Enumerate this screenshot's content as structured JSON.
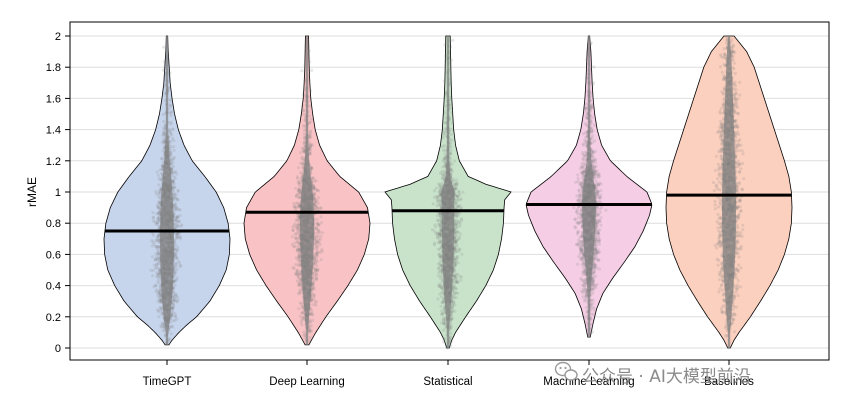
{
  "chart_data": {
    "type": "violin",
    "ylabel": "rMAE",
    "ylim": [
      0,
      2
    ],
    "yticks": [
      0,
      0.2,
      0.4,
      0.6,
      0.8,
      1,
      1.2,
      1.4,
      1.6,
      1.8,
      2
    ],
    "ytick_labels": [
      "0",
      "0.2",
      "0.4",
      "0.6",
      "0.8",
      "1",
      "1.2",
      "1.4",
      "1.6",
      "1.8",
      "2"
    ],
    "grid": "horizontal",
    "categories": [
      "TimeGPT",
      "Deep Learning",
      "Statistical",
      "Machine Learning",
      "Baselines"
    ],
    "medians": [
      0.75,
      0.87,
      0.88,
      0.92,
      0.98
    ],
    "colors": [
      "#c7d5ec",
      "#f9c3c6",
      "#c9e3cb",
      "#f5cde4",
      "#fcd0bf"
    ],
    "point_color": "#808080",
    "series": [
      {
        "category": "TimeGPT",
        "min": 0.02,
        "max": 2.0,
        "density": [
          [
            0.02,
            0.03
          ],
          [
            0.05,
            0.08
          ],
          [
            0.1,
            0.19
          ],
          [
            0.15,
            0.32
          ],
          [
            0.2,
            0.47
          ],
          [
            0.3,
            0.68
          ],
          [
            0.4,
            0.83
          ],
          [
            0.5,
            0.94
          ],
          [
            0.6,
            0.99
          ],
          [
            0.7,
            1.0
          ],
          [
            0.8,
            0.97
          ],
          [
            0.9,
            0.9
          ],
          [
            1.0,
            0.78
          ],
          [
            1.1,
            0.6
          ],
          [
            1.2,
            0.4
          ],
          [
            1.3,
            0.27
          ],
          [
            1.4,
            0.18
          ],
          [
            1.5,
            0.12
          ],
          [
            1.6,
            0.08
          ],
          [
            1.7,
            0.05
          ],
          [
            1.8,
            0.035
          ],
          [
            1.9,
            0.02
          ],
          [
            2.0,
            0.01
          ]
        ]
      },
      {
        "category": "Deep Learning",
        "min": 0.02,
        "max": 2.0,
        "density": [
          [
            0.02,
            0.03
          ],
          [
            0.05,
            0.07
          ],
          [
            0.1,
            0.14
          ],
          [
            0.2,
            0.3
          ],
          [
            0.3,
            0.48
          ],
          [
            0.4,
            0.65
          ],
          [
            0.5,
            0.8
          ],
          [
            0.6,
            0.91
          ],
          [
            0.7,
            0.98
          ],
          [
            0.8,
            1.0
          ],
          [
            0.9,
            0.96
          ],
          [
            1.0,
            0.82
          ],
          [
            1.1,
            0.52
          ],
          [
            1.2,
            0.32
          ],
          [
            1.3,
            0.2
          ],
          [
            1.4,
            0.13
          ],
          [
            1.5,
            0.09
          ],
          [
            1.6,
            0.06
          ],
          [
            1.7,
            0.045
          ],
          [
            1.8,
            0.035
          ],
          [
            1.9,
            0.03
          ],
          [
            2.0,
            0.025
          ]
        ]
      },
      {
        "category": "Statistical",
        "min": 0.0,
        "max": 2.0,
        "density": [
          [
            0.0,
            0.02
          ],
          [
            0.05,
            0.06
          ],
          [
            0.1,
            0.12
          ],
          [
            0.2,
            0.28
          ],
          [
            0.3,
            0.45
          ],
          [
            0.4,
            0.6
          ],
          [
            0.5,
            0.72
          ],
          [
            0.6,
            0.8
          ],
          [
            0.7,
            0.85
          ],
          [
            0.8,
            0.88
          ],
          [
            0.9,
            0.89
          ],
          [
            0.95,
            0.9
          ],
          [
            1.0,
            1.0
          ],
          [
            1.05,
            0.6
          ],
          [
            1.1,
            0.32
          ],
          [
            1.2,
            0.18
          ],
          [
            1.3,
            0.12
          ],
          [
            1.4,
            0.09
          ],
          [
            1.5,
            0.075
          ],
          [
            1.6,
            0.06
          ],
          [
            1.7,
            0.05
          ],
          [
            1.8,
            0.045
          ],
          [
            1.9,
            0.04
          ],
          [
            2.0,
            0.035
          ]
        ]
      },
      {
        "category": "Machine Learning",
        "min": 0.07,
        "max": 2.0,
        "density": [
          [
            0.07,
            0.02
          ],
          [
            0.15,
            0.06
          ],
          [
            0.25,
            0.12
          ],
          [
            0.35,
            0.22
          ],
          [
            0.45,
            0.38
          ],
          [
            0.55,
            0.56
          ],
          [
            0.65,
            0.73
          ],
          [
            0.75,
            0.86
          ],
          [
            0.85,
            0.96
          ],
          [
            0.92,
            1.0
          ],
          [
            1.0,
            0.92
          ],
          [
            1.1,
            0.6
          ],
          [
            1.2,
            0.34
          ],
          [
            1.3,
            0.2
          ],
          [
            1.4,
            0.13
          ],
          [
            1.5,
            0.09
          ],
          [
            1.6,
            0.065
          ],
          [
            1.7,
            0.05
          ],
          [
            1.8,
            0.04
          ],
          [
            1.9,
            0.03
          ],
          [
            2.0,
            0.01
          ]
        ]
      },
      {
        "category": "Baselines",
        "min": 0.0,
        "max": 2.0,
        "density": [
          [
            0.0,
            0.02
          ],
          [
            0.05,
            0.08
          ],
          [
            0.1,
            0.16
          ],
          [
            0.2,
            0.34
          ],
          [
            0.3,
            0.5
          ],
          [
            0.4,
            0.65
          ],
          [
            0.5,
            0.78
          ],
          [
            0.6,
            0.88
          ],
          [
            0.7,
            0.95
          ],
          [
            0.8,
            0.99
          ],
          [
            0.9,
            1.0
          ],
          [
            1.0,
            0.99
          ],
          [
            1.1,
            0.95
          ],
          [
            1.2,
            0.88
          ],
          [
            1.3,
            0.8
          ],
          [
            1.4,
            0.72
          ],
          [
            1.5,
            0.64
          ],
          [
            1.6,
            0.56
          ],
          [
            1.7,
            0.48
          ],
          [
            1.8,
            0.4
          ],
          [
            1.9,
            0.28
          ],
          [
            1.95,
            0.18
          ],
          [
            2.0,
            0.08
          ]
        ]
      }
    ]
  },
  "watermark": {
    "text": "公众号 · AI大模型前沿"
  }
}
